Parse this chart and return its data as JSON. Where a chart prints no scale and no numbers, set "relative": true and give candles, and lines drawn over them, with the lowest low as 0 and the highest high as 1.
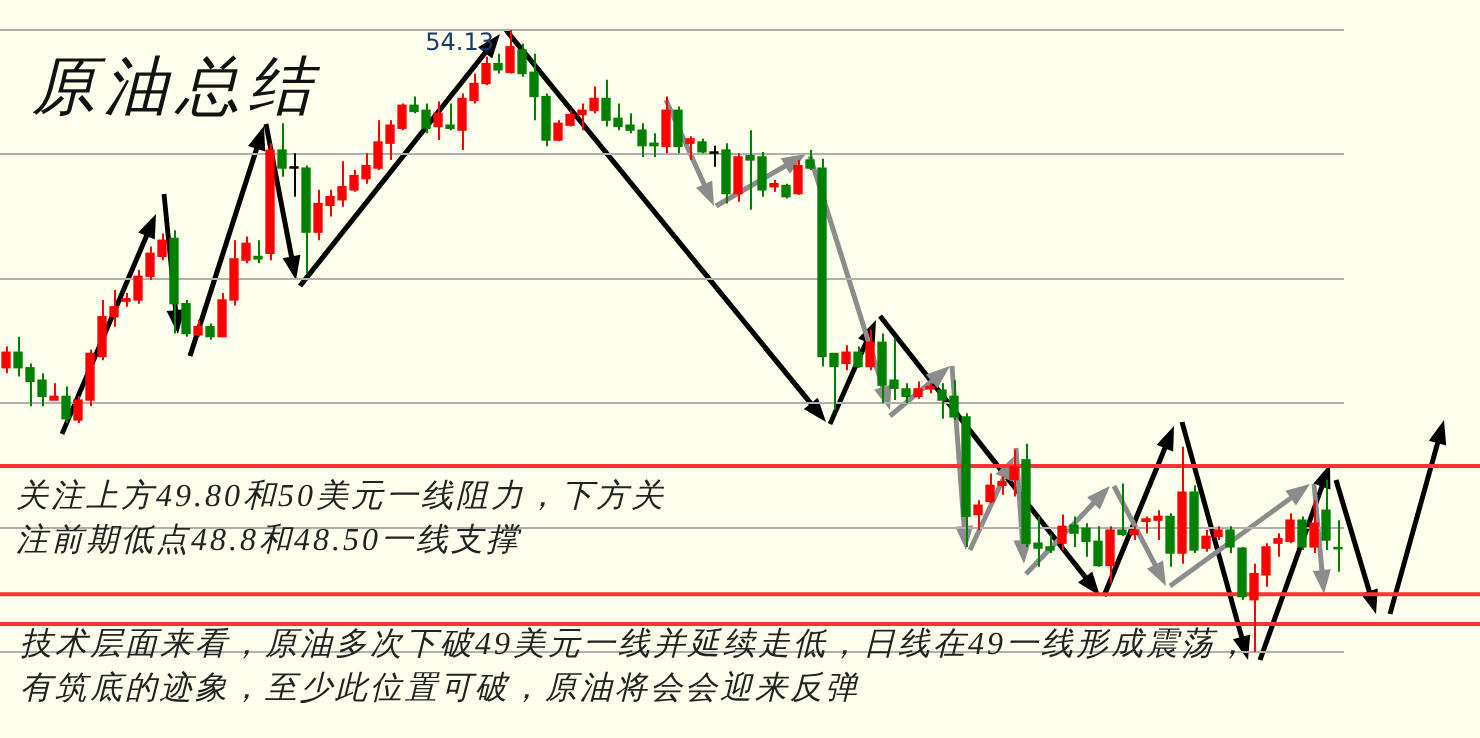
{
  "chart_data": {
    "type": "candlestick",
    "title": "原油总结",
    "relative": true,
    "legend": false,
    "tick_labels": false,
    "grid": "y",
    "categories": [
      null,
      null,
      null,
      null,
      null,
      null,
      null,
      null,
      null,
      null,
      null,
      null,
      null,
      null,
      null,
      null,
      null,
      null,
      null,
      null,
      null,
      null,
      null,
      null,
      null,
      null,
      null,
      null,
      null,
      null,
      null,
      null,
      null,
      null,
      null,
      null,
      null,
      null,
      null,
      null,
      null,
      null,
      null,
      null,
      null,
      null,
      null,
      null,
      null,
      null,
      null,
      null,
      null,
      null,
      null,
      null,
      null,
      null,
      null,
      null,
      null,
      null,
      null,
      null,
      null,
      null,
      null,
      null,
      null,
      null,
      null,
      null,
      null,
      null,
      null,
      null,
      null,
      null,
      null,
      null,
      null,
      null,
      null,
      null,
      null,
      null,
      null,
      null,
      null,
      null,
      null,
      null,
      null,
      null,
      null,
      null,
      null,
      null,
      null,
      null,
      null,
      null,
      null,
      null,
      null,
      null,
      null,
      null,
      null,
      null,
      null,
      null
    ],
    "ohlc": [
      [
        0.457,
        0.491,
        0.448,
        0.482
      ],
      [
        0.482,
        0.507,
        0.443,
        0.457
      ],
      [
        0.457,
        0.464,
        0.395,
        0.435
      ],
      [
        0.437,
        0.448,
        0.395,
        0.411
      ],
      [
        0.405,
        0.432,
        0.405,
        0.411
      ],
      [
        0.411,
        0.427,
        0.368,
        0.375
      ],
      [
        0.373,
        0.411,
        0.368,
        0.405
      ],
      [
        0.405,
        0.486,
        0.395,
        0.48
      ],
      [
        0.475,
        0.566,
        0.469,
        0.539
      ],
      [
        0.539,
        0.582,
        0.523,
        0.555
      ],
      [
        0.564,
        0.577,
        0.555,
        0.568
      ],
      [
        0.566,
        0.614,
        0.56,
        0.604
      ],
      [
        0.604,
        0.652,
        0.598,
        0.641
      ],
      [
        0.636,
        0.673,
        0.63,
        0.662
      ],
      [
        0.665,
        0.678,
        0.512,
        0.56
      ],
      [
        0.56,
        0.566,
        0.507,
        0.512
      ],
      [
        0.51,
        0.534,
        0.507,
        0.523
      ],
      [
        0.523,
        0.528,
        0.502,
        0.507
      ],
      [
        0.507,
        0.577,
        0.507,
        0.566
      ],
      [
        0.566,
        0.662,
        0.557,
        0.632
      ],
      [
        0.63,
        0.668,
        0.625,
        0.657
      ],
      [
        0.636,
        0.662,
        0.625,
        0.632
      ],
      [
        0.641,
        0.818,
        0.63,
        0.807
      ],
      [
        0.807,
        0.85,
        0.764,
        0.778
      ],
      [
        0.778,
        0.802,
        0.732,
        0.778
      ],
      [
        0.778,
        0.782,
        0.609,
        0.675
      ],
      [
        0.675,
        0.743,
        0.662,
        0.721
      ],
      [
        0.718,
        0.743,
        0.7,
        0.732
      ],
      [
        0.727,
        0.789,
        0.716,
        0.748
      ],
      [
        0.743,
        0.775,
        0.74,
        0.766
      ],
      [
        0.761,
        0.802,
        0.753,
        0.782
      ],
      [
        0.778,
        0.855,
        0.775,
        0.82
      ],
      [
        0.818,
        0.855,
        0.791,
        0.847
      ],
      [
        0.842,
        0.882,
        0.839,
        0.879
      ],
      [
        0.879,
        0.893,
        0.866,
        0.869
      ],
      [
        0.871,
        0.882,
        0.834,
        0.842
      ],
      [
        0.845,
        0.885,
        0.823,
        0.866
      ],
      [
        0.847,
        0.882,
        0.839,
        0.842
      ],
      [
        0.839,
        0.898,
        0.807,
        0.89
      ],
      [
        0.887,
        0.93,
        0.882,
        0.914
      ],
      [
        0.914,
        0.957,
        0.911,
        0.946
      ],
      [
        0.946,
        0.962,
        0.93,
        0.936
      ],
      [
        0.932,
        1,
        0.93,
        0.973
      ],
      [
        0.968,
        0.978,
        0.925,
        0.93
      ],
      [
        0.932,
        0.962,
        0.855,
        0.893
      ],
      [
        0.893,
        0.898,
        0.813,
        0.823
      ],
      [
        0.823,
        0.855,
        0.821,
        0.85
      ],
      [
        0.847,
        0.871,
        0.845,
        0.864
      ],
      [
        0.864,
        0.882,
        0.839,
        0.871
      ],
      [
        0.871,
        0.909,
        0.866,
        0.89
      ],
      [
        0.89,
        0.92,
        0.845,
        0.855
      ],
      [
        0.858,
        0.882,
        0.839,
        0.845
      ],
      [
        0.847,
        0.866,
        0.834,
        0.839
      ],
      [
        0.839,
        0.85,
        0.796,
        0.814
      ],
      [
        0.818,
        0.834,
        0.796,
        0.814
      ],
      [
        0.813,
        0.893,
        0.802,
        0.871
      ],
      [
        0.871,
        0.877,
        0.802,
        0.813
      ],
      [
        0.818,
        0.829,
        0.791,
        0.825
      ],
      [
        0.82,
        0.825,
        0.802,
        0.804
      ],
      [
        0.802,
        0.814,
        0.78,
        0.802
      ],
      [
        0.807,
        0.818,
        0.721,
        0.737
      ],
      [
        0.737,
        0.802,
        0.724,
        0.796
      ],
      [
        0.798,
        0.839,
        0.711,
        0.791
      ],
      [
        0.796,
        0.804,
        0.732,
        0.743
      ],
      [
        0.748,
        0.759,
        0.74,
        0.753
      ],
      [
        0.75,
        0.753,
        0.729,
        0.732
      ],
      [
        0.737,
        0.791,
        0.735,
        0.782
      ],
      [
        0.791,
        0.807,
        0.775,
        0.778
      ],
      [
        0.778,
        0.793,
        0.459,
        0.475
      ],
      [
        0.48,
        0.48,
        0.389,
        0.459
      ],
      [
        0.464,
        0.493,
        0.453,
        0.482
      ],
      [
        0.482,
        0.491,
        0.457,
        0.459
      ],
      [
        0.459,
        0.518,
        0.453,
        0.498
      ],
      [
        0.498,
        0.512,
        0.4,
        0.429
      ],
      [
        0.437,
        0.504,
        0.405,
        0.424
      ],
      [
        0.423,
        0.432,
        0.4,
        0.411
      ],
      [
        0.411,
        0.435,
        0.407,
        0.423
      ],
      [
        0.423,
        0.432,
        0.416,
        0.427
      ],
      [
        0.421,
        0.432,
        0.375,
        0.405
      ],
      [
        0.411,
        0.437,
        0.373,
        0.378
      ],
      [
        0.378,
        0.384,
        0.169,
        0.218
      ],
      [
        0.221,
        0.244,
        0.196,
        0.236
      ],
      [
        0.242,
        0.287,
        0.239,
        0.268
      ],
      [
        0.268,
        0.282,
        0.253,
        0.274
      ],
      [
        0.277,
        0.325,
        0.25,
        0.298
      ],
      [
        0.309,
        0.335,
        0.169,
        0.175
      ],
      [
        0.175,
        0.218,
        0.137,
        0.167
      ],
      [
        0.169,
        0.189,
        0.159,
        0.164
      ],
      [
        0.175,
        0.221,
        0.164,
        0.202
      ],
      [
        0.204,
        0.218,
        0.169,
        0.191
      ],
      [
        0.199,
        0.207,
        0.153,
        0.178
      ],
      [
        0.178,
        0.202,
        0.137,
        0.139
      ],
      [
        0.139,
        0.202,
        0.11,
        0.196
      ],
      [
        0.196,
        0.271,
        0.186,
        0.189
      ],
      [
        0.189,
        0.202,
        0.18,
        0.196
      ],
      [
        0.21,
        0.218,
        0.191,
        0.214
      ],
      [
        0.212,
        0.228,
        0.18,
        0.218
      ],
      [
        0.218,
        0.223,
        0.137,
        0.159
      ],
      [
        0.159,
        0.33,
        0.142,
        0.257
      ],
      [
        0.257,
        0.268,
        0.159,
        0.164
      ],
      [
        0.167,
        0.196,
        0.161,
        0.186
      ],
      [
        0.186,
        0.202,
        0.18,
        0.196
      ],
      [
        0.196,
        0.202,
        0.159,
        0.169
      ],
      [
        0.167,
        0.169,
        0.084,
        0.089
      ],
      [
        0.084,
        0.142,
        0,
        0.126
      ],
      [
        0.124,
        0.175,
        0.105,
        0.169
      ],
      [
        0.175,
        0.191,
        0.153,
        0.182
      ],
      [
        0.178,
        0.223,
        0.175,
        0.212
      ],
      [
        0.212,
        0.218,
        0.164,
        0.169
      ],
      [
        0.169,
        0.244,
        0.159,
        0.207
      ],
      [
        0.228,
        0.277,
        0.164,
        0.18
      ],
      [
        0.166,
        0.212,
        0.129,
        0.166
      ]
    ],
    "colors": [
      "#ff0000",
      "#008000",
      "#008000",
      "#008000",
      "#ff0000",
      "#008000",
      "#ff0000",
      "#ff0000",
      "#ff0000",
      "#ff0000",
      "#ff0000",
      "#ff0000",
      "#ff0000",
      "#ff0000",
      "#008000",
      "#008000",
      "#ff0000",
      "#008000",
      "#ff0000",
      "#ff0000",
      "#ff0000",
      "#008000",
      "#ff0000",
      "#008000",
      "#000000",
      "#008000",
      "#ff0000",
      "#ff0000",
      "#ff0000",
      "#ff0000",
      "#ff0000",
      "#ff0000",
      "#ff0000",
      "#ff0000",
      "#008000",
      "#008000",
      "#ff0000",
      "#008000",
      "#ff0000",
      "#ff0000",
      "#ff0000",
      "#008000",
      "#ff0000",
      "#008000",
      "#008000",
      "#008000",
      "#ff0000",
      "#ff0000",
      "#ff0000",
      "#ff0000",
      "#008000",
      "#008000",
      "#008000",
      "#008000",
      "#008000",
      "#ff0000",
      "#008000",
      "#ff0000",
      "#008000",
      "#000000",
      "#008000",
      "#ff0000",
      "#008000",
      "#008000",
      "#ff0000",
      "#008000",
      "#ff0000",
      "#008000",
      "#008000",
      "#008000",
      "#ff0000",
      "#008000",
      "#ff0000",
      "#008000",
      "#008000",
      "#008000",
      "#ff0000",
      "#ff0000",
      "#008000",
      "#008000",
      "#008000",
      "#ff0000",
      "#ff0000",
      "#ff0000",
      "#ff0000",
      "#008000",
      "#008000",
      "#008000",
      "#ff0000",
      "#008000",
      "#008000",
      "#008000",
      "#ff0000",
      "#008000",
      "#ff0000",
      "#ff0000",
      "#ff0000",
      "#008000",
      "#ff0000",
      "#008000",
      "#ff0000",
      "#ff0000",
      "#008000",
      "#008000",
      "#ff0000",
      "#ff0000",
      "#ff0000",
      "#ff0000",
      "#008000",
      "#ff0000",
      "#008000",
      "#008000"
    ],
    "ref_lines": [
      {
        "axis": "y",
        "value": 0.299,
        "color": "#ff3333"
      },
      {
        "axis": "y",
        "value": 0.093,
        "color": "#ff3333"
      },
      {
        "axis": "y",
        "value": 0.045,
        "color": "#ff3333"
      }
    ],
    "annotations": [
      "54.13",
      "关注上方49.80和50美元一线阻力，下方关注前期低点48.8和48.50一线支撑",
      "技术层面来看，原油多次下破49美元一线并延续走低，日线在49一线形成震荡，有筑底的迹象，至少此位置可破，原油将会会迎来反弹"
    ]
  }
}
